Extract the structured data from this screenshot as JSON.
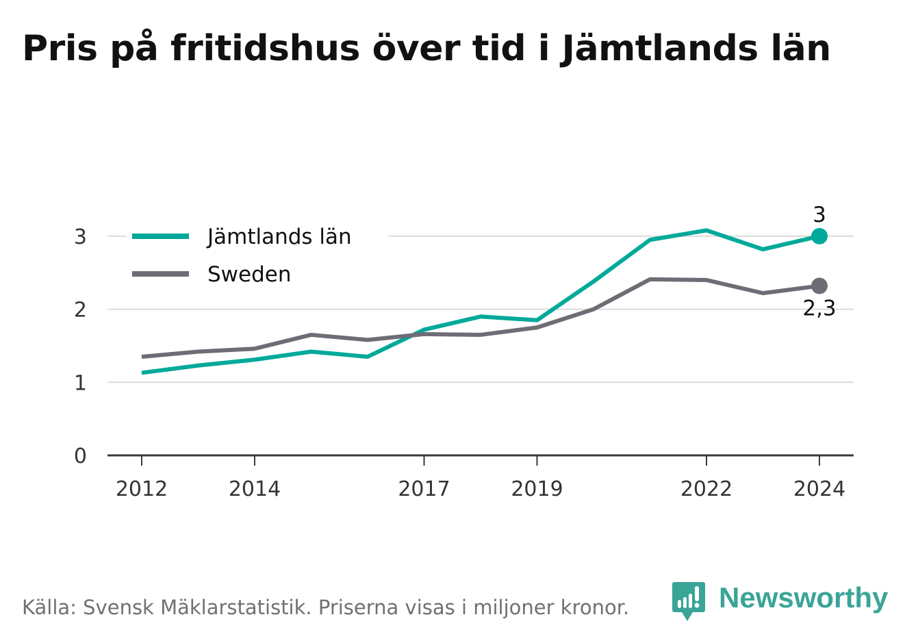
{
  "title": "Pris på fritidshus över tid i Jämtlands län",
  "footer": {
    "source": "Källa: Svensk Mäklarstatistik. Priserna visas i miljoner kronor.",
    "brand": "Newsworthy",
    "brand_icon": "newsworthy-logo-icon",
    "brand_color": "#3aa497"
  },
  "chart_data": {
    "type": "line",
    "title": "Pris på fritidshus över tid i Jämtlands län",
    "xlabel": "",
    "ylabel": "",
    "x": [
      2012,
      2013,
      2014,
      2015,
      2016,
      2017,
      2018,
      2019,
      2020,
      2021,
      2022,
      2023,
      2024
    ],
    "x_ticks": [
      "2012",
      "2014",
      "2017",
      "2019",
      "2022",
      "2024"
    ],
    "y_ticks": [
      "0",
      "1",
      "2",
      "3"
    ],
    "ylim": [
      0,
      3.3
    ],
    "grid": true,
    "legend": "top-left",
    "series": [
      {
        "name": "Jämtlands län",
        "color": "#00a99a",
        "values": [
          1.13,
          1.23,
          1.31,
          1.42,
          1.35,
          1.72,
          1.9,
          1.85,
          2.38,
          2.95,
          3.08,
          2.82,
          3.0
        ],
        "end_label": "3"
      },
      {
        "name": "Sweden",
        "color": "#6e6d75",
        "values": [
          1.35,
          1.42,
          1.46,
          1.65,
          1.58,
          1.66,
          1.65,
          1.75,
          2.0,
          2.41,
          2.4,
          2.22,
          2.32
        ],
        "end_label": "2,3"
      }
    ]
  }
}
